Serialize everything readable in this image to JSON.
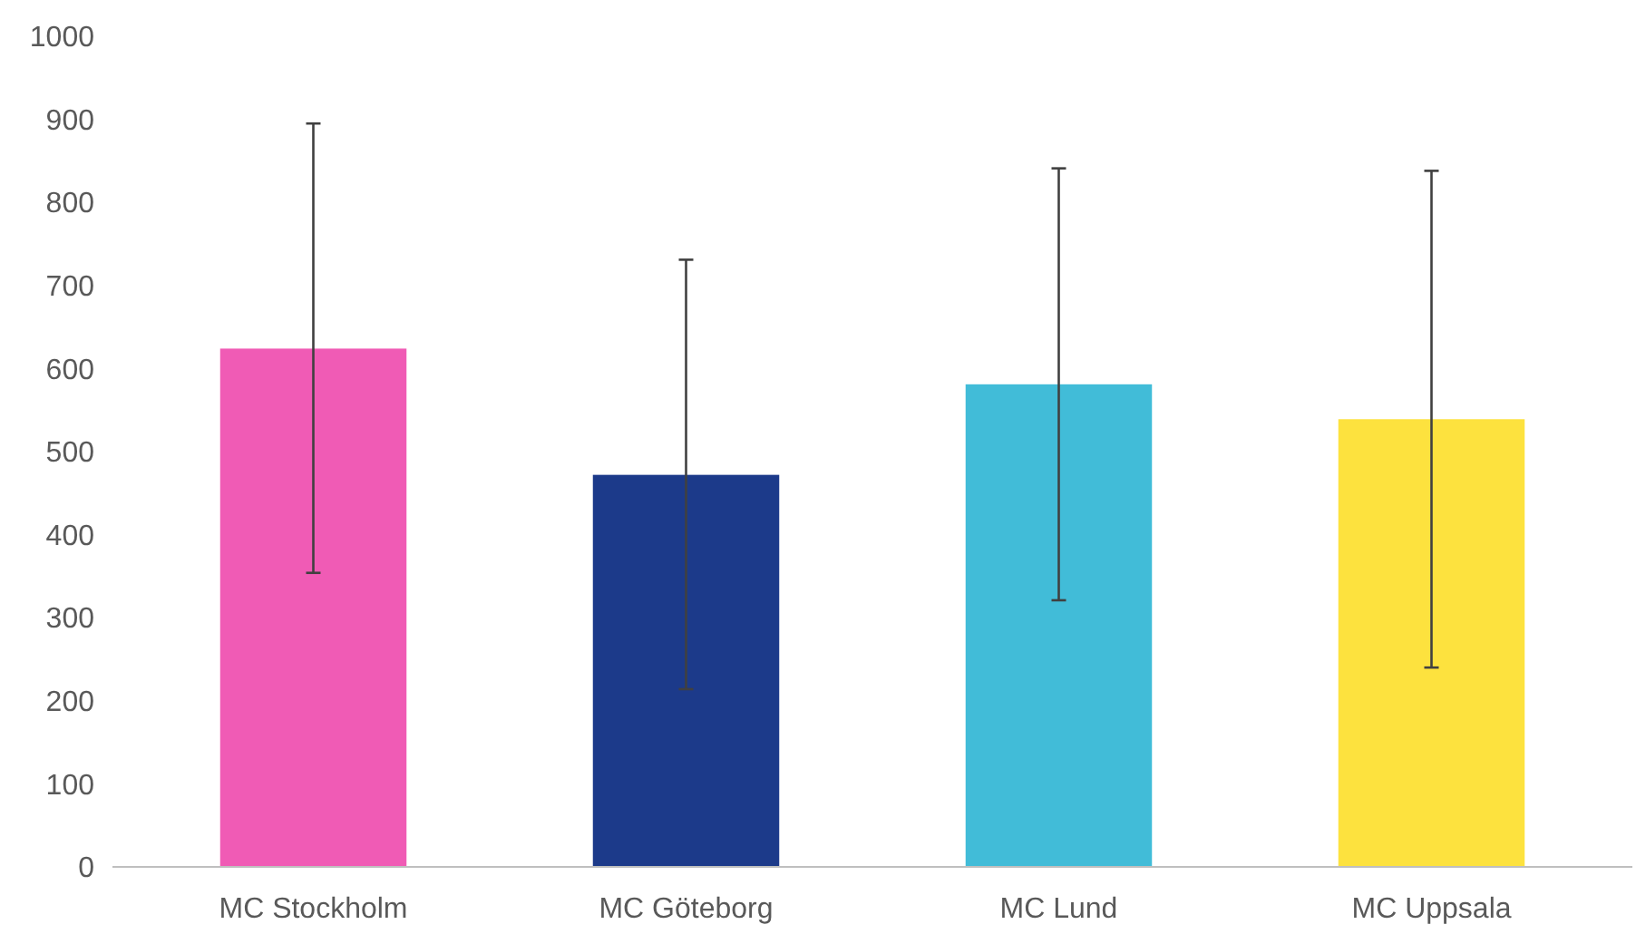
{
  "chart_data": {
    "type": "bar",
    "categories": [
      "MC Stockholm",
      "MC Göteborg",
      "MC Lund",
      "MC Uppsala"
    ],
    "values": [
      624,
      472,
      581,
      539
    ],
    "colors": [
      "#f05bb5",
      "#1c3a8a",
      "#41bcd8",
      "#fde23e"
    ],
    "errors": [
      [
        354,
        895
      ],
      [
        214,
        731
      ],
      [
        321,
        841
      ],
      [
        240,
        838
      ]
    ],
    "ylim": [
      0,
      1000
    ],
    "yticks": [
      0,
      100,
      200,
      300,
      400,
      500,
      600,
      700,
      800,
      900,
      1000
    ],
    "grid": false
  }
}
